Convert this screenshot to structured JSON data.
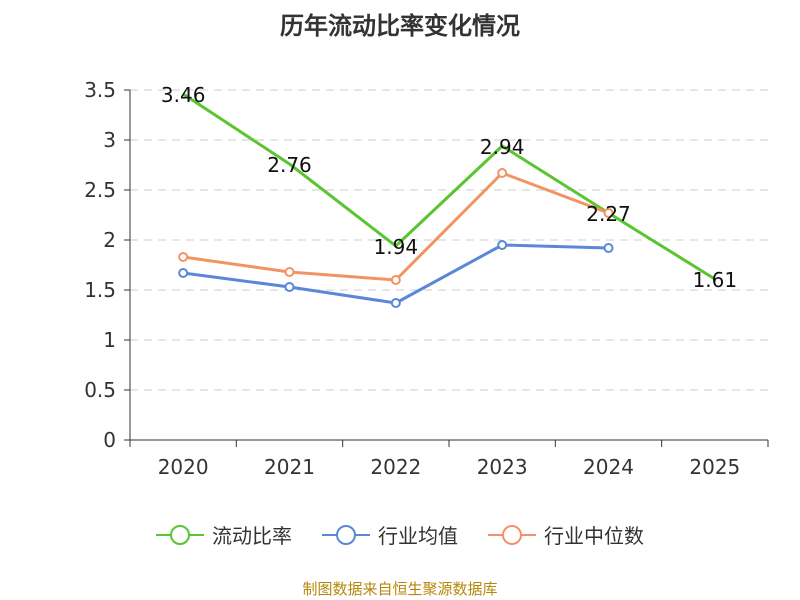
{
  "chart_data": {
    "type": "line",
    "title": "历年流动比率变化情况",
    "categories": [
      "2020",
      "2021",
      "2022",
      "2023",
      "2024",
      "2025"
    ],
    "ylim": [
      0,
      3.5
    ],
    "yticks": [
      "0",
      "0.5",
      "1",
      "1.5",
      "2",
      "2.5",
      "3",
      "3.5"
    ],
    "grid": true,
    "legend_position": "bottom",
    "series": [
      {
        "name": "流动比率",
        "color": "#5ac530",
        "values": [
          3.46,
          2.76,
          1.94,
          2.94,
          2.27,
          1.61
        ],
        "labels": [
          "3.46",
          "2.76",
          "1.94",
          "2.94",
          "2.27",
          "1.61"
        ],
        "markers": false
      },
      {
        "name": "行业均值",
        "color": "#5b87d8",
        "values": [
          1.67,
          1.53,
          1.37,
          1.95,
          1.92,
          null
        ],
        "markers": true
      },
      {
        "name": "行业中位数",
        "color": "#f29364",
        "values": [
          1.83,
          1.68,
          1.6,
          2.67,
          2.27,
          null
        ],
        "markers": true
      }
    ]
  },
  "source": "制图数据来自恒生聚源数据库"
}
